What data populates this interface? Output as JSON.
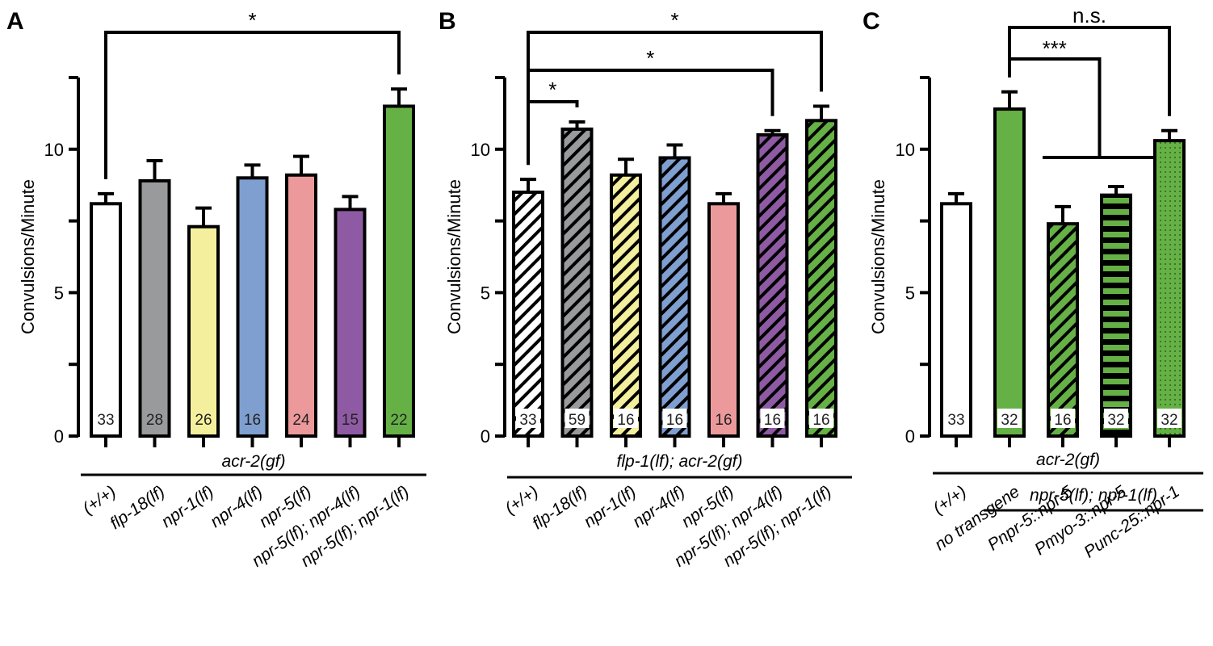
{
  "chart_data": [
    {
      "type": "bar",
      "panel": "A",
      "ylabel": "Convulsions/Minute",
      "ylim": [
        0,
        12.5
      ],
      "yticks": [
        0,
        5,
        10
      ],
      "categories": [
        "(+/+)",
        "flp-18(lf)",
        "npr-1(lf)",
        "npr-4(lf)",
        "npr-5(lf)",
        "npr-5(lf); npr-4(lf)",
        "npr-5(lf); npr-1(lf)"
      ],
      "values": [
        8.1,
        8.9,
        7.3,
        9.0,
        9.1,
        7.9,
        11.5
      ],
      "errors": [
        0.35,
        0.7,
        0.65,
        0.45,
        0.65,
        0.45,
        0.6
      ],
      "n": [
        "33",
        "28",
        "26",
        "16",
        "24",
        "15",
        "22"
      ],
      "colors": [
        "#ffffff",
        "#999a9c",
        "#f4ef9c",
        "#7f9fd0",
        "#ec999b",
        "#8f5aa4",
        "#66b146"
      ],
      "patterns": [
        "none",
        "none",
        "none",
        "none",
        "none",
        "none",
        "none"
      ],
      "groups": [
        {
          "label": "acr-2(gf)",
          "from": 0,
          "to": 6
        }
      ],
      "significance": [
        {
          "type": "bracket",
          "from": 0,
          "to": 6,
          "label": "*"
        }
      ]
    },
    {
      "type": "bar",
      "panel": "B",
      "ylabel": "Convulsions/Minute",
      "ylim": [
        0,
        12.5
      ],
      "yticks": [
        0,
        5,
        10
      ],
      "categories": [
        "(+/+)",
        "flp-18(lf)",
        "npr-1(lf)",
        "npr-4(lf)",
        "npr-5(lf)",
        "npr-5(lf); npr-4(lf)",
        "npr-5(lf); npr-1(lf)"
      ],
      "values": [
        8.5,
        10.7,
        9.1,
        9.7,
        8.1,
        10.5,
        11.0
      ],
      "errors": [
        0.45,
        0.25,
        0.55,
        0.45,
        0.35,
        0.15,
        0.5
      ],
      "n": [
        "33",
        "59",
        "16",
        "16",
        "16",
        "16",
        "16"
      ],
      "colors": [
        "#ffffff",
        "#999a9c",
        "#f4ef9c",
        "#7f9fd0",
        "#ec999b",
        "#8f5aa4",
        "#66b146"
      ],
      "patterns": [
        "hatch",
        "hatch",
        "hatch",
        "hatch",
        "none",
        "hatch",
        "hatch"
      ],
      "groups": [
        {
          "label": "flp-1(lf); acr-2(gf)",
          "from": 0,
          "to": 6
        }
      ],
      "significance": [
        {
          "type": "bracket",
          "from": 0,
          "to": 6,
          "label": "*"
        },
        {
          "type": "bracket",
          "from": 0,
          "to": 5,
          "label": "*"
        },
        {
          "type": "bracket",
          "from": 0,
          "to": 1,
          "label": "*"
        }
      ]
    },
    {
      "type": "bar",
      "panel": "C",
      "ylabel": "Convulsions/Minute",
      "ylim": [
        0,
        12.5
      ],
      "yticks": [
        0,
        5,
        10
      ],
      "categories": [
        "(+/+)",
        "no transgene",
        "Pnpr-5::npr-5",
        "Pmyo-3::npr-5",
        "Punc-25::npr-1"
      ],
      "values": [
        8.1,
        11.4,
        7.4,
        8.4,
        10.3
      ],
      "errors": [
        0.35,
        0.6,
        0.6,
        0.3,
        0.35
      ],
      "n": [
        "33",
        "32",
        "16",
        "32",
        "32"
      ],
      "colors": [
        "#ffffff",
        "#66b146",
        "#66b146",
        "#66b146",
        "#66b146"
      ],
      "patterns": [
        "none",
        "none",
        "hatch",
        "stripes",
        "dots"
      ],
      "groups": [
        {
          "label": "acr-2(gf)",
          "from": 0,
          "to": 4
        },
        {
          "label": "npr-5(lf); npr-1(lf)",
          "from": 1,
          "to": 4
        }
      ],
      "significance": [
        {
          "type": "bracket",
          "from": 1,
          "to": 4,
          "label": "n.s."
        },
        {
          "type": "multi",
          "from": 1,
          "group_from": 2,
          "group_to": 3,
          "label": "***"
        }
      ]
    }
  ]
}
